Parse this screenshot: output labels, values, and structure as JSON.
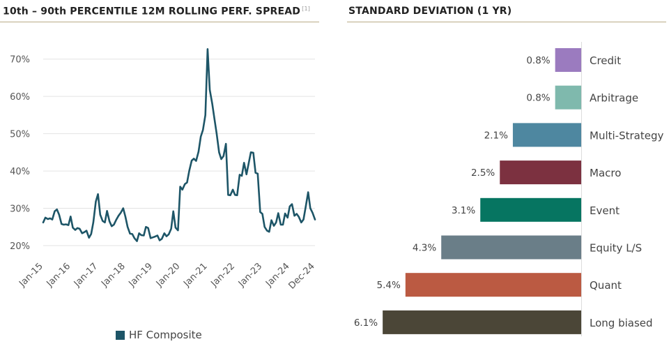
{
  "chart_data": [
    {
      "type": "line",
      "title": "10th – 90th PERCENTILE 12M ROLLING PERF. SPREAD",
      "footnote_marker": "[1]",
      "xlabel": "",
      "ylabel": "",
      "ylim": [
        0.17,
        0.75
      ],
      "yticks": [
        0.2,
        0.3,
        0.4,
        0.5,
        0.6,
        0.7
      ],
      "ytick_labels": [
        "20%",
        "30%",
        "40%",
        "50%",
        "60%",
        "70%"
      ],
      "xlim": [
        2015.0,
        2024.92
      ],
      "xticks": [
        2015.0,
        2016.0,
        2017.0,
        2018.0,
        2019.0,
        2020.0,
        2021.0,
        2022.0,
        2023.0,
        2024.0,
        2024.92
      ],
      "xtick_labels": [
        "Jan-15",
        "Jan-16",
        "Jan-17",
        "Jan-18",
        "Jan-19",
        "Jan-20",
        "Jan-21",
        "Jan-22",
        "Jan-23",
        "Jan-24",
        "Dec-24"
      ],
      "grid": true,
      "legend": "bottom",
      "series": [
        {
          "name": "HF Composite",
          "color": "#1d5567",
          "x": [
            2015.0,
            2015.08,
            2015.17,
            2015.25,
            2015.33,
            2015.42,
            2015.5,
            2015.58,
            2015.67,
            2015.75,
            2015.83,
            2015.92,
            2016.0,
            2016.08,
            2016.17,
            2016.25,
            2016.33,
            2016.42,
            2016.5,
            2016.58,
            2016.67,
            2016.75,
            2016.83,
            2016.92,
            2017.0,
            2017.08,
            2017.17,
            2017.25,
            2017.33,
            2017.42,
            2017.5,
            2017.58,
            2017.67,
            2017.75,
            2017.83,
            2017.92,
            2018.0,
            2018.08,
            2018.17,
            2018.25,
            2018.33,
            2018.42,
            2018.5,
            2018.58,
            2018.67,
            2018.75,
            2018.83,
            2018.92,
            2019.0,
            2019.08,
            2019.17,
            2019.25,
            2019.33,
            2019.42,
            2019.5,
            2019.58,
            2019.67,
            2019.75,
            2019.83,
            2019.92,
            2020.0,
            2020.08,
            2020.17,
            2020.25,
            2020.33,
            2020.42,
            2020.5,
            2020.58,
            2020.67,
            2020.75,
            2020.83,
            2020.92,
            2021.0,
            2021.08,
            2021.17,
            2021.25,
            2021.33,
            2021.42,
            2021.5,
            2021.58,
            2021.67,
            2021.75,
            2021.83,
            2021.92,
            2022.0,
            2022.08,
            2022.17,
            2022.25,
            2022.33,
            2022.42,
            2022.5,
            2022.58,
            2022.67,
            2022.75,
            2022.83,
            2022.92,
            2023.0,
            2023.08,
            2023.17,
            2023.25,
            2023.33,
            2023.42,
            2023.5,
            2023.58,
            2023.67,
            2023.75,
            2023.83,
            2023.92,
            2024.0,
            2024.08,
            2024.17,
            2024.25,
            2024.33,
            2024.42,
            2024.5,
            2024.58,
            2024.67,
            2024.75,
            2024.83,
            2024.92
          ],
          "values": [
            0.262,
            0.275,
            0.271,
            0.273,
            0.27,
            0.292,
            0.297,
            0.283,
            0.258,
            0.256,
            0.257,
            0.255,
            0.278,
            0.248,
            0.242,
            0.247,
            0.245,
            0.233,
            0.236,
            0.24,
            0.221,
            0.231,
            0.262,
            0.318,
            0.338,
            0.283,
            0.266,
            0.262,
            0.293,
            0.265,
            0.252,
            0.256,
            0.27,
            0.28,
            0.288,
            0.3,
            0.278,
            0.25,
            0.232,
            0.231,
            0.22,
            0.212,
            0.233,
            0.228,
            0.227,
            0.25,
            0.247,
            0.22,
            0.222,
            0.224,
            0.227,
            0.214,
            0.218,
            0.233,
            0.225,
            0.23,
            0.245,
            0.292,
            0.248,
            0.241,
            0.358,
            0.35,
            0.365,
            0.369,
            0.4,
            0.428,
            0.433,
            0.427,
            0.452,
            0.492,
            0.51,
            0.55,
            0.727,
            0.618,
            0.58,
            0.54,
            0.5,
            0.45,
            0.432,
            0.44,
            0.473,
            0.336,
            0.335,
            0.35,
            0.336,
            0.335,
            0.39,
            0.387,
            0.422,
            0.391,
            0.421,
            0.45,
            0.449,
            0.395,
            0.393,
            0.29,
            0.285,
            0.25,
            0.24,
            0.237,
            0.268,
            0.253,
            0.262,
            0.287,
            0.256,
            0.256,
            0.286,
            0.275,
            0.305,
            0.311,
            0.28,
            0.285,
            0.277,
            0.262,
            0.27,
            0.303,
            0.343,
            0.3,
            0.288,
            0.27
          ]
        }
      ]
    },
    {
      "type": "bar",
      "orientation": "horizontal",
      "title": "STANDARD DEVIATION (1 YR)",
      "xlabel": "",
      "ylabel": "",
      "xlim": [
        0,
        6.25
      ],
      "categories": [
        "Credit",
        "Arbitrage",
        "Multi-Strategy",
        "Macro",
        "Event",
        "Equity L/S",
        "Quant",
        "Long biased"
      ],
      "values": [
        0.8,
        0.8,
        2.1,
        2.5,
        3.1,
        4.3,
        5.4,
        6.1
      ],
      "value_labels": [
        "0.8%",
        "0.8%",
        "2.1%",
        "2.5%",
        "3.1%",
        "4.3%",
        "5.4%",
        "6.1%"
      ],
      "colors": [
        "#9b7bbf",
        "#7fb9ad",
        "#4e87a0",
        "#7c3140",
        "#067561",
        "#6a7e88",
        "#bb5a42",
        "#4b4637"
      ],
      "legend": "none"
    }
  ]
}
